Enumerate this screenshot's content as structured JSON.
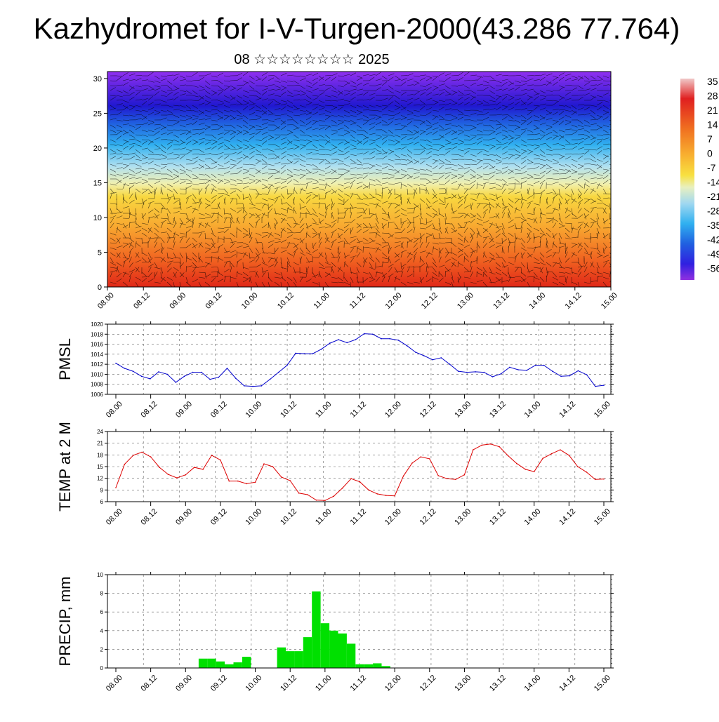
{
  "title": "Kazhydromet for I-V-Turgen-2000(43.286 77.764)",
  "subtitle": "08 ☆☆☆☆☆☆☆☆ 2025",
  "time_tick_labels": [
    "08.00",
    "08.12",
    "09.00",
    "09.12",
    "10.00",
    "10.12",
    "11.00",
    "11.12",
    "12.00",
    "12.12",
    "13.00",
    "13.12",
    "14.00",
    "14.12",
    "15.00"
  ],
  "colorbar": {
    "labels": [
      "35",
      "28",
      "21",
      "14",
      "7",
      "0",
      "-7",
      "-14",
      "-21",
      "-28",
      "-35",
      "-42",
      "-49",
      "-56"
    ],
    "colors": [
      "#d8d8ff",
      "#e03020",
      "#f07020",
      "#f8b030",
      "#f8e040",
      "#e8f0b0",
      "#a0d8f0",
      "#30b0f0",
      "#2060e0",
      "#4020e0",
      "#8020e0"
    ]
  },
  "chart_data": [
    {
      "type": "heatmap",
      "name": "upper-air",
      "x_ticks": [
        "08.00",
        "08.12",
        "09.00",
        "09.12",
        "10.00",
        "10.12",
        "11.00",
        "11.12",
        "12.00",
        "12.12",
        "13.00",
        "13.12",
        "14.00",
        "14.12",
        "15.00"
      ],
      "ylim": [
        0,
        31
      ],
      "y_ticks": [
        0,
        5,
        10,
        15,
        20,
        25,
        30
      ],
      "color_scale": [
        "-56",
        "35"
      ],
      "note_values": "temperature field with wind barbs"
    },
    {
      "type": "line",
      "ylabel": "PMSL",
      "ylim": [
        1006,
        1020
      ],
      "y_ticks": [
        1006,
        1008,
        1010,
        1012,
        1014,
        1016,
        1018,
        1020
      ],
      "color": "#0000cc",
      "values": [
        1012.2,
        1011.2,
        1010.6,
        1009.6,
        1009.1,
        1010.5,
        1010.0,
        1008.4,
        1009.6,
        1010.4,
        1010.4,
        1009.0,
        1009.4,
        1011.2,
        1009.2,
        1007.7,
        1007.6,
        1007.7,
        1009.0,
        1010.4,
        1011.8,
        1014.2,
        1014.1,
        1014.1,
        1015.0,
        1016.2,
        1016.9,
        1016.3,
        1016.9,
        1018.1,
        1018.0,
        1017.1,
        1017.1,
        1016.8,
        1015.7,
        1014.4,
        1013.7,
        1012.9,
        1013.3,
        1012.0,
        1010.6,
        1010.4,
        1010.5,
        1010.4,
        1009.5,
        1010.1,
        1011.4,
        1010.9,
        1010.8,
        1011.8,
        1011.8,
        1010.6,
        1009.6,
        1009.7,
        1010.7,
        1009.9,
        1007.6,
        1007.8
      ]
    },
    {
      "type": "line",
      "ylabel": "TEMP at 2 M",
      "ylim": [
        6,
        24
      ],
      "y_ticks": [
        6,
        9,
        12,
        15,
        18,
        21,
        24
      ],
      "color": "#dd0000",
      "values": [
        9.6,
        15.6,
        17.9,
        18.7,
        17.5,
        14.8,
        13.0,
        12.1,
        12.9,
        14.8,
        14.3,
        17.9,
        16.7,
        11.3,
        11.3,
        10.6,
        11.0,
        15.7,
        15.0,
        12.3,
        11.4,
        8.2,
        7.8,
        6.4,
        6.3,
        7.4,
        9.5,
        11.9,
        11.1,
        9.0,
        8.0,
        7.6,
        7.5,
        12.6,
        15.9,
        17.5,
        17.0,
        12.7,
        11.9,
        11.7,
        12.9,
        19.3,
        20.5,
        20.8,
        20.1,
        17.8,
        15.8,
        14.3,
        13.7,
        17.1,
        18.3,
        19.3,
        17.9,
        15.0,
        13.6,
        11.7,
        11.8
      ]
    },
    {
      "type": "bar",
      "ylabel": "PRECIP, mm",
      "ylim": [
        0,
        10
      ],
      "y_ticks": [
        0,
        2,
        4,
        6,
        8,
        10
      ],
      "color": "#00e000",
      "values": [
        0,
        0,
        0,
        0,
        0,
        0,
        0,
        0,
        0,
        1.0,
        1.0,
        0.7,
        0.4,
        0.6,
        1.2,
        0,
        0,
        0,
        2.2,
        1.8,
        1.8,
        3.3,
        8.2,
        4.8,
        4.0,
        3.7,
        2.6,
        0.4,
        0.4,
        0.5,
        0.2,
        0,
        0,
        0,
        0,
        0,
        0,
        0,
        0,
        0,
        0,
        0,
        0,
        0,
        0,
        0,
        0,
        0,
        0,
        0,
        0,
        0,
        0,
        0,
        0,
        0,
        0
      ]
    }
  ]
}
